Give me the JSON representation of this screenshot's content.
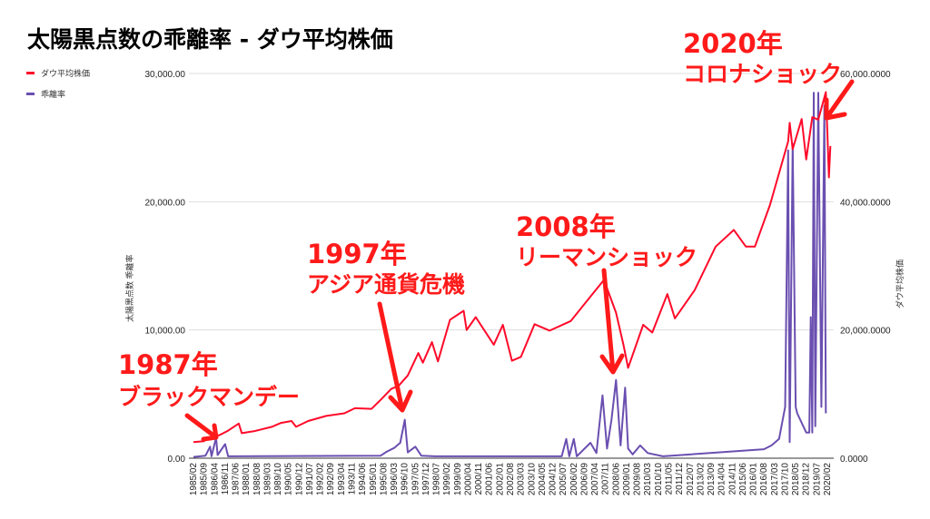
{
  "title": "太陽黒点数の乖離率 - ダウ平均株価",
  "colors": {
    "dow": "#ff0a2a",
    "kairi": "#6a4fb0",
    "annotation": "#ff1a1a",
    "grid": "#dddddd"
  },
  "legend": [
    {
      "label": "ダウ平均株価",
      "color": "#ff0a2a"
    },
    {
      "label": "乖離率",
      "color": "#6a4fb0"
    }
  ],
  "annotations": [
    {
      "year": "1987年",
      "event": "ブラックマンデー"
    },
    {
      "year": "1997年",
      "event": "アジア通貨危機"
    },
    {
      "year": "2008年",
      "event": "リーマンショック"
    },
    {
      "year": "2020年",
      "event": "コロナショック"
    }
  ],
  "chart_data": {
    "type": "line",
    "title": "太陽黒点数の乖離率 - ダウ平均株価",
    "ylabel_left": "太陽黒点数 乖離率",
    "ylabel_right": "ダウ平均株価",
    "ylim_left": [
      0,
      30000
    ],
    "ylim_right": [
      0,
      60000
    ],
    "yticks_left": [
      "0.00",
      "10,000.00",
      "20,000.00",
      "30,000.00"
    ],
    "yticks_right": [
      "0.0000",
      "20,000.0000",
      "40,000.0000",
      "60,000.0000"
    ],
    "xrange": [
      "1985/02",
      "2020/04"
    ],
    "xticks": [
      "1985/02",
      "1985/09",
      "1986/04",
      "1986/11",
      "1987/06",
      "1988/01",
      "1988/08",
      "1989/03",
      "1989/10",
      "1990/05",
      "1990/12",
      "1991/07",
      "1992/02",
      "1992/09",
      "1993/04",
      "1993/11",
      "1994/06",
      "1995/01",
      "1995/08",
      "1996/03",
      "1996/10",
      "1997/05",
      "1997/12",
      "1998/07",
      "1999/02",
      "1999/09",
      "2000/04",
      "2000/11",
      "2001/06",
      "2002/01",
      "2002/08",
      "2003/03",
      "2003/10",
      "2004/05",
      "2004/12",
      "2005/07",
      "2006/02",
      "2006/09",
      "2007/04",
      "2007/11",
      "2008/06",
      "2009/01",
      "2009/08",
      "2010/03",
      "2010/10",
      "2011/05",
      "2011/12",
      "2012/07",
      "2013/02",
      "2013/09",
      "2014/04",
      "2014/11",
      "2015/06",
      "2016/01",
      "2016/08",
      "2017/03",
      "2017/10",
      "2018/05",
      "2018/12",
      "2019/07",
      "2020/02"
    ],
    "grid": true,
    "legend_position": "top-left",
    "series": [
      {
        "name": "ダウ平均株価",
        "axis": "left",
        "points": [
          [
            "1985/02",
            1250
          ],
          [
            "1985/09",
            1330
          ],
          [
            "1986/03",
            1800
          ],
          [
            "1986/07",
            1780
          ],
          [
            "1987/01",
            2150
          ],
          [
            "1987/08",
            2700
          ],
          [
            "1987/10",
            1950
          ],
          [
            "1988/06",
            2100
          ],
          [
            "1989/06",
            2450
          ],
          [
            "1989/12",
            2750
          ],
          [
            "1990/07",
            2900
          ],
          [
            "1990/10",
            2450
          ],
          [
            "1991/06",
            2900
          ],
          [
            "1992/06",
            3300
          ],
          [
            "1993/06",
            3500
          ],
          [
            "1994/01",
            3900
          ],
          [
            "1994/12",
            3850
          ],
          [
            "1995/06",
            4550
          ],
          [
            "1996/01",
            5400
          ],
          [
            "1996/06",
            5650
          ],
          [
            "1996/12",
            6450
          ],
          [
            "1997/07",
            8200
          ],
          [
            "1997/10",
            7450
          ],
          [
            "1998/04",
            9050
          ],
          [
            "1998/08",
            7550
          ],
          [
            "1999/04",
            10800
          ],
          [
            "2000/01",
            11500
          ],
          [
            "2000/03",
            10000
          ],
          [
            "2000/09",
            11000
          ],
          [
            "2001/09",
            8850
          ],
          [
            "2002/03",
            10400
          ],
          [
            "2002/09",
            7600
          ],
          [
            "2003/03",
            7900
          ],
          [
            "2003/12",
            10450
          ],
          [
            "2004/10",
            9950
          ],
          [
            "2005/12",
            10700
          ],
          [
            "2006/12",
            12450
          ],
          [
            "2007/10",
            13900
          ],
          [
            "2008/06",
            11350
          ],
          [
            "2008/11",
            8800
          ],
          [
            "2009/02",
            7050
          ],
          [
            "2009/12",
            10400
          ],
          [
            "2010/06",
            9800
          ],
          [
            "2011/04",
            12800
          ],
          [
            "2011/09",
            10900
          ],
          [
            "2012/10",
            13100
          ],
          [
            "2013/12",
            16500
          ],
          [
            "2014/12",
            17800
          ],
          [
            "2015/08",
            16500
          ],
          [
            "2016/02",
            16500
          ],
          [
            "2016/12",
            19750
          ],
          [
            "2017/12",
            24700
          ],
          [
            "2018/01",
            26150
          ],
          [
            "2018/03",
            24100
          ],
          [
            "2018/09",
            26450
          ],
          [
            "2018/12",
            23300
          ],
          [
            "2019/04",
            26600
          ],
          [
            "2019/08",
            26400
          ],
          [
            "2020/01",
            28550
          ],
          [
            "2020/02",
            25400
          ],
          [
            "2020/03",
            21900
          ],
          [
            "2020/04",
            24350
          ]
        ]
      },
      {
        "name": "乖離率",
        "axis": "right",
        "points": [
          [
            "1985/02",
            200
          ],
          [
            "1985/10",
            400
          ],
          [
            "1986/01",
            1800
          ],
          [
            "1986/02",
            300
          ],
          [
            "1986/05",
            3200
          ],
          [
            "1986/06",
            500
          ],
          [
            "1986/11",
            2200
          ],
          [
            "1987/01",
            300
          ],
          [
            "1995/06",
            400
          ],
          [
            "1995/10",
            1000
          ],
          [
            "1996/03",
            1600
          ],
          [
            "1996/07",
            2400
          ],
          [
            "1996/10",
            6000
          ],
          [
            "1996/12",
            900
          ],
          [
            "1997/05",
            1800
          ],
          [
            "1997/09",
            400
          ],
          [
            "1998/06",
            300
          ],
          [
            "2005/06",
            300
          ],
          [
            "2005/09",
            3000
          ],
          [
            "2005/11",
            300
          ],
          [
            "2006/02",
            3000
          ],
          [
            "2006/04",
            300
          ],
          [
            "2007/01",
            2400
          ],
          [
            "2007/05",
            800
          ],
          [
            "2007/09",
            9800
          ],
          [
            "2007/12",
            1500
          ],
          [
            "2008/03",
            6000
          ],
          [
            "2008/06",
            12200
          ],
          [
            "2008/09",
            2000
          ],
          [
            "2008/12",
            11000
          ],
          [
            "2009/02",
            1500
          ],
          [
            "2009/05",
            600
          ],
          [
            "2009/10",
            2000
          ],
          [
            "2010/03",
            800
          ],
          [
            "2011/01",
            300
          ],
          [
            "2016/08",
            1400
          ],
          [
            "2017/01",
            2000
          ],
          [
            "2017/06",
            3000
          ],
          [
            "2017/10",
            8000
          ],
          [
            "2017/12",
            48000
          ],
          [
            "2018/01",
            2500
          ],
          [
            "2018/03",
            49000
          ],
          [
            "2018/05",
            8000
          ],
          [
            "2018/06",
            7000
          ],
          [
            "2018/12",
            4000
          ],
          [
            "2019/02",
            4000
          ],
          [
            "2019/03",
            22000
          ],
          [
            "2019/04",
            4000
          ],
          [
            "2019/05",
            57000
          ],
          [
            "2019/06",
            5000
          ],
          [
            "2019/08",
            57000
          ],
          [
            "2019/10",
            8000
          ],
          [
            "2019/12",
            55000
          ],
          [
            "2020/01",
            7000
          ]
        ]
      }
    ]
  }
}
